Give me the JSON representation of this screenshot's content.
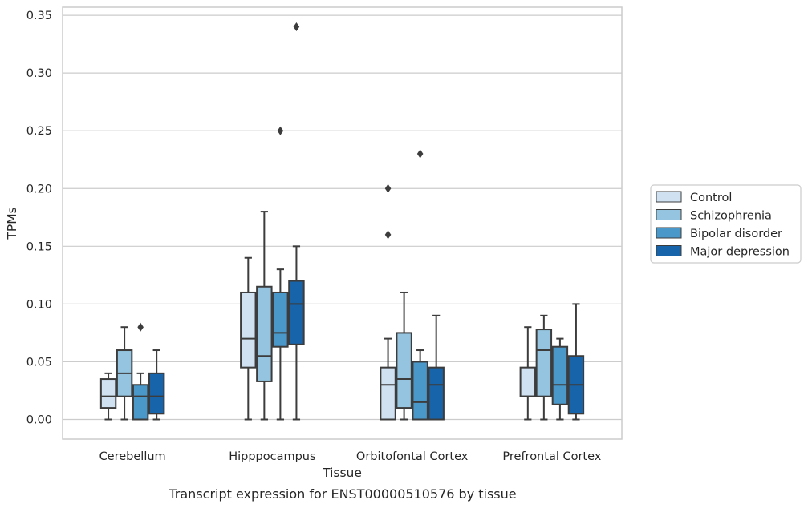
{
  "caption": "Transcript expression for ENST00000510576 by tissue",
  "chart_data": {
    "type": "boxplot",
    "xlabel": "Tissue",
    "ylabel": "TPMs",
    "ylim": [
      -0.017,
      0.357
    ],
    "yticks": [
      "0.00",
      "0.05",
      "0.10",
      "0.15",
      "0.20",
      "0.25",
      "0.30",
      "0.35"
    ],
    "ytick_values": [
      0.0,
      0.05,
      0.1,
      0.15,
      0.2,
      0.25,
      0.3,
      0.35
    ],
    "grid": true,
    "legend_position": "right",
    "categories": [
      "Cerebellum",
      "Hipppocampus",
      "Orbitofontal Cortex",
      "Prefrontal Cortex"
    ],
    "series": [
      {
        "name": "Control",
        "color": "#d0e1f2",
        "boxes": [
          {
            "min": 0.0,
            "q1": 0.01,
            "median": 0.02,
            "q3": 0.035,
            "max": 0.04,
            "outliers": []
          },
          {
            "min": 0.0,
            "q1": 0.045,
            "median": 0.07,
            "q3": 0.11,
            "max": 0.14,
            "outliers": []
          },
          {
            "min": 0.0,
            "q1": 0.0,
            "median": 0.03,
            "q3": 0.045,
            "max": 0.07,
            "outliers": [
              0.16,
              0.2
            ]
          },
          {
            "min": 0.0,
            "q1": 0.02,
            "median": 0.02,
            "q3": 0.045,
            "max": 0.08,
            "outliers": []
          }
        ]
      },
      {
        "name": "Schizophrenia",
        "color": "#94c4df",
        "boxes": [
          {
            "min": 0.0,
            "q1": 0.02,
            "median": 0.04,
            "q3": 0.06,
            "max": 0.08,
            "outliers": []
          },
          {
            "min": 0.0,
            "q1": 0.033,
            "median": 0.055,
            "q3": 0.115,
            "max": 0.18,
            "outliers": []
          },
          {
            "min": 0.0,
            "q1": 0.01,
            "median": 0.035,
            "q3": 0.075,
            "max": 0.11,
            "outliers": []
          },
          {
            "min": 0.0,
            "q1": 0.02,
            "median": 0.06,
            "q3": 0.078,
            "max": 0.09,
            "outliers": []
          }
        ]
      },
      {
        "name": "Bipolar disorder",
        "color": "#4a98c9",
        "boxes": [
          {
            "min": 0.0,
            "q1": 0.0,
            "median": 0.02,
            "q3": 0.03,
            "max": 0.04,
            "outliers": [
              0.08
            ]
          },
          {
            "min": 0.0,
            "q1": 0.063,
            "median": 0.075,
            "q3": 0.11,
            "max": 0.13,
            "outliers": [
              0.25
            ]
          },
          {
            "min": 0.0,
            "q1": 0.0,
            "median": 0.015,
            "q3": 0.05,
            "max": 0.06,
            "outliers": [
              0.23
            ]
          },
          {
            "min": 0.0,
            "q1": 0.013,
            "median": 0.03,
            "q3": 0.063,
            "max": 0.07,
            "outliers": []
          }
        ]
      },
      {
        "name": "Major depression",
        "color": "#1764ab",
        "boxes": [
          {
            "min": 0.0,
            "q1": 0.005,
            "median": 0.02,
            "q3": 0.04,
            "max": 0.06,
            "outliers": []
          },
          {
            "min": 0.0,
            "q1": 0.065,
            "median": 0.1,
            "q3": 0.12,
            "max": 0.15,
            "outliers": [
              0.34
            ]
          },
          {
            "min": 0.0,
            "q1": 0.0,
            "median": 0.03,
            "q3": 0.045,
            "max": 0.09,
            "outliers": []
          },
          {
            "min": 0.0,
            "q1": 0.005,
            "median": 0.03,
            "q3": 0.055,
            "max": 0.1,
            "outliers": []
          }
        ]
      }
    ]
  }
}
